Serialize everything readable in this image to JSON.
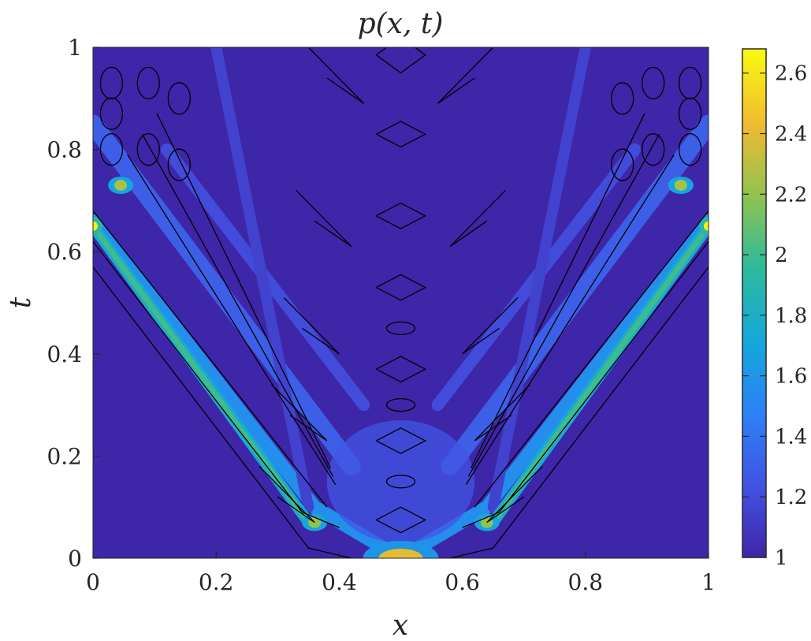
{
  "chart_data": {
    "type": "heatmap",
    "title": "p(x, t)",
    "xlabel": "x",
    "ylabel": "t",
    "xlim": [
      0,
      1
    ],
    "ylim": [
      0,
      1
    ],
    "x_ticks": [
      "0",
      "0.2",
      "0.4",
      "0.6",
      "0.8",
      "1"
    ],
    "y_ticks": [
      "0",
      "0.2",
      "0.4",
      "0.6",
      "0.8",
      "1"
    ],
    "colorbar": {
      "min": 1,
      "max": 2.68,
      "ticks": [
        "1",
        "1.2",
        "1.4",
        "1.6",
        "1.8",
        "2",
        "2.2",
        "2.4",
        "2.6"
      ],
      "colormap": "parula"
    },
    "description_values": {
      "base_value": 1,
      "initial_peak": {
        "x": 0.5,
        "t": 0,
        "value": 2.4
      },
      "characteristic_fronts": [
        {
          "from": [
            0.35,
            0.07
          ],
          "to": [
            0.0,
            0.65
          ],
          "peak_value": 2.65
        },
        {
          "from": [
            0.65,
            0.07
          ],
          "to": [
            1.0,
            0.65
          ],
          "peak_value": 2.65
        }
      ],
      "side_bumps": [
        {
          "x": 0.36,
          "t": 0.07,
          "value": 2.2
        },
        {
          "x": 0.64,
          "t": 0.07,
          "value": 2.2
        },
        {
          "x": 0.045,
          "t": 0.73,
          "value": 2.25
        },
        {
          "x": 0.955,
          "t": 0.73,
          "value": 2.25
        }
      ]
    },
    "grid": false,
    "legend": "none"
  }
}
